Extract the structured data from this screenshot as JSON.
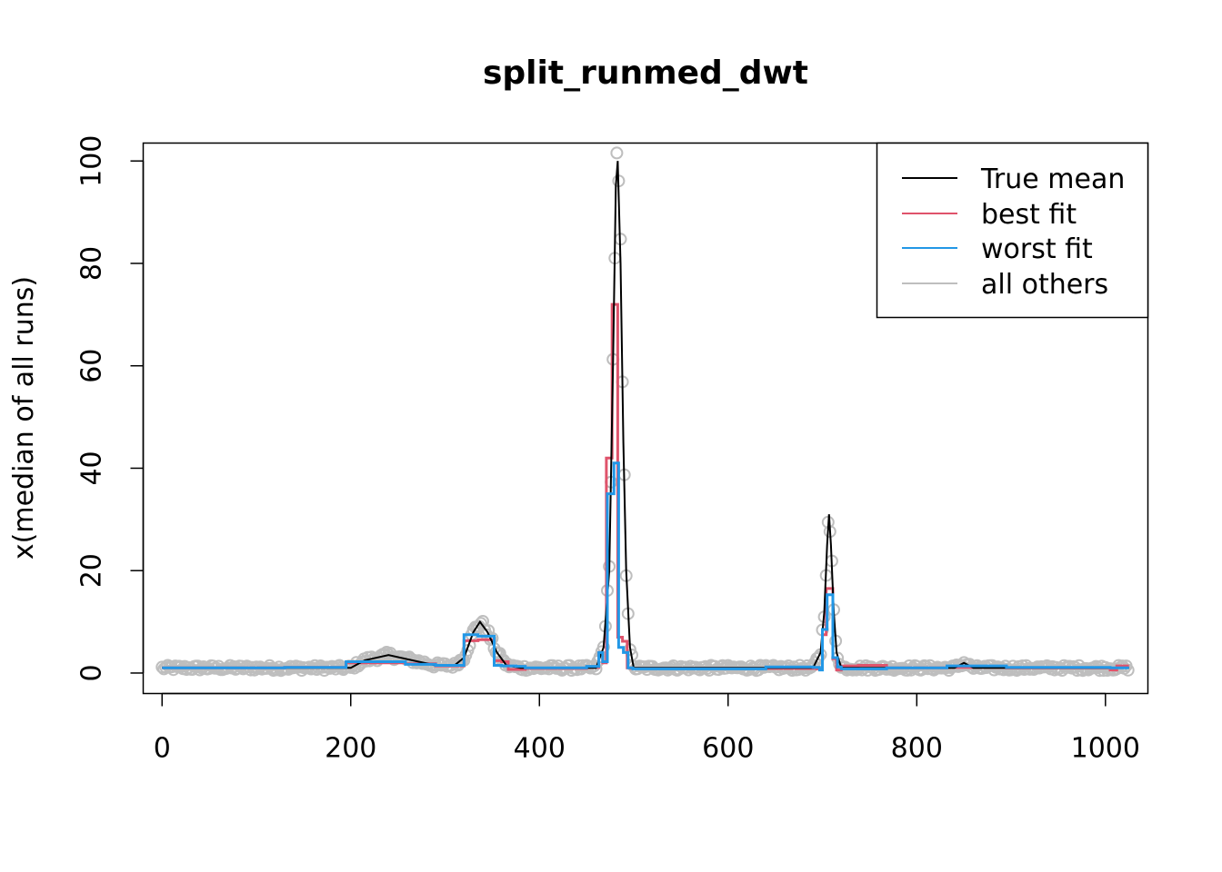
{
  "chart_data": {
    "type": "line",
    "title": "split_runmed_dwt",
    "xlabel": "",
    "ylabel": "x(median of all runs)",
    "xlim": [
      -20,
      1045
    ],
    "ylim": [
      -4,
      103.5
    ],
    "xticks": [
      0,
      200,
      400,
      600,
      800,
      1000
    ],
    "yticks": [
      0,
      20,
      40,
      60,
      80,
      100
    ],
    "grid": false,
    "legend_position": "top-right",
    "colors": {
      "true_mean": "#000000",
      "best_fit": "#DF536B",
      "worst_fit": "#2297E6",
      "all_others": "#BEBEBE"
    },
    "legend": [
      {
        "key": "true_mean",
        "label": "True mean"
      },
      {
        "key": "best_fit",
        "label": "best fit"
      },
      {
        "key": "worst_fit",
        "label": "worst fit"
      },
      {
        "key": "all_others",
        "label": "all others"
      }
    ],
    "true_mean": {
      "x": [
        0,
        200,
        215,
        240,
        265,
        290,
        310,
        320,
        330,
        337,
        345,
        355,
        365,
        380,
        460,
        468,
        474,
        478,
        481,
        483,
        486,
        489,
        492,
        496,
        500,
        520,
        690,
        698,
        702,
        705,
        707,
        709,
        712,
        715,
        720,
        730,
        840,
        850,
        860,
        1025
      ],
      "y": [
        1,
        1,
        2.5,
        3.5,
        2.5,
        1.5,
        1.5,
        3,
        8,
        10,
        8,
        4,
        1.5,
        1,
        1,
        5,
        20,
        60,
        95,
        100,
        80,
        45,
        20,
        5,
        1,
        1,
        1,
        4,
        12,
        25,
        31,
        25,
        12,
        4,
        1,
        1,
        1,
        2,
        1,
        1
      ]
    },
    "best_fit": {
      "x": [
        0,
        130,
        195,
        258,
        290,
        320,
        335,
        352,
        360,
        367,
        385,
        450,
        463,
        467,
        471,
        477,
        483,
        488,
        493,
        497,
        620,
        675,
        694,
        700,
        704,
        711,
        715,
        720,
        738,
        768,
        800,
        832,
        895,
        1005,
        1012,
        1025
      ],
      "y": [
        1,
        1.1,
        2,
        1.8,
        1.4,
        6.3,
        6.5,
        2.4,
        2.2,
        0.7,
        0.9,
        1.1,
        4,
        2,
        42,
        72,
        7,
        6.2,
        1,
        0.9,
        0.9,
        0.9,
        0.8,
        7.5,
        16.5,
        2.8,
        0.6,
        1.4,
        1.5,
        1,
        1,
        1.1,
        1,
        0.6,
        1.4,
        1.4
      ]
    },
    "worst_fit": {
      "x": [
        0,
        130,
        195,
        258,
        290,
        320,
        335,
        352,
        360,
        375,
        385,
        450,
        463,
        467,
        472,
        479,
        484,
        489,
        494,
        499,
        640,
        690,
        697,
        700,
        705,
        711,
        716,
        720,
        738,
        768,
        800,
        832,
        895,
        1005,
        1025
      ],
      "y": [
        1,
        1.1,
        2.2,
        1.7,
        1.5,
        7.5,
        7.2,
        1.5,
        1.4,
        1.3,
        1,
        1.3,
        4,
        2.2,
        35,
        41,
        5,
        4,
        1,
        0.8,
        1.2,
        1.1,
        0.6,
        8.5,
        15.3,
        3,
        1.2,
        0.8,
        0.8,
        1,
        1,
        1.4,
        1.1,
        1,
        1
      ]
    }
  }
}
